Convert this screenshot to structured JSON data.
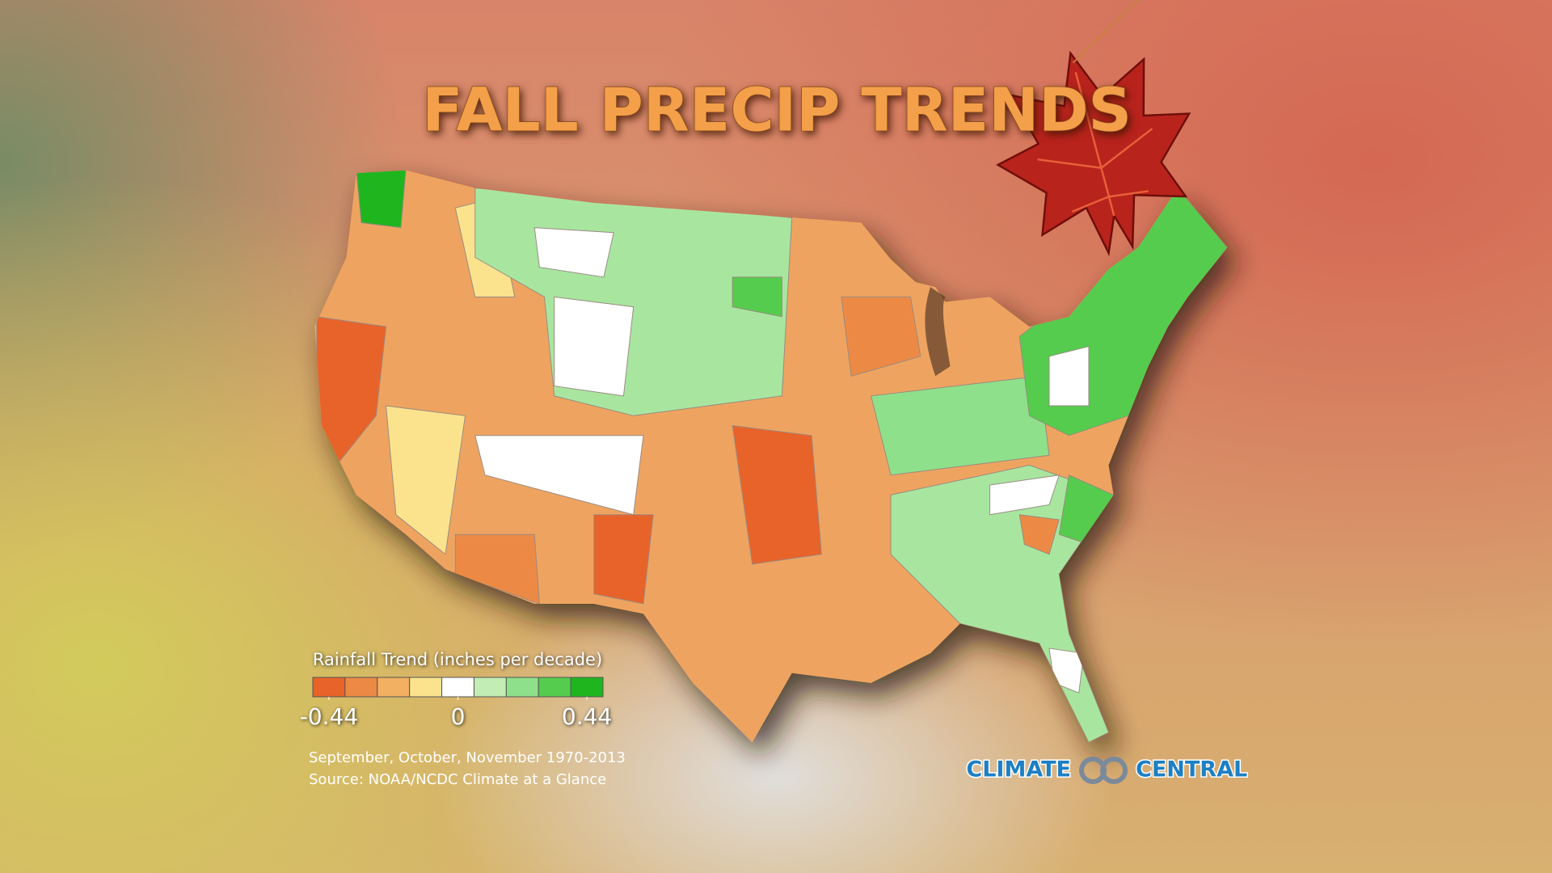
{
  "title": "FALL PRECIP TRENDS",
  "legend": {
    "title": "Rainfall Trend (inches per decade)",
    "colors": [
      "#e8632a",
      "#ec8a45",
      "#f2b062",
      "#fbe38e",
      "#ffffff",
      "#c2edb4",
      "#8fe08a",
      "#55cc4d",
      "#1fb51f"
    ],
    "lim": [
      -0.495,
      0.495
    ],
    "ticks": [
      -0.44,
      0,
      0.44
    ]
  },
  "notes": [
    "September, October, November 1970-2013",
    "Source: NOAA/NCDC Climate at a Glance"
  ],
  "logo": {
    "left": "CLIMATE",
    "right": "CENTRAL"
  }
}
